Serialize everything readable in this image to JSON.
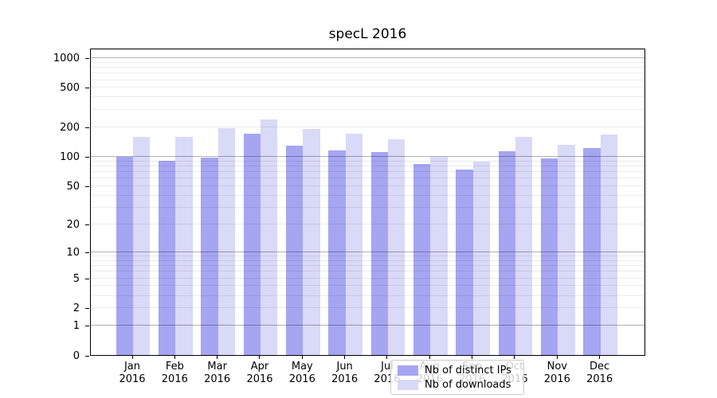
{
  "chart_data": {
    "type": "bar",
    "title": "specL 2016",
    "x": {
      "months": [
        "Jan",
        "Feb",
        "Mar",
        "Apr",
        "May",
        "Jun",
        "Jul",
        "Aug",
        "Sep",
        "Oct",
        "Nov",
        "Dec"
      ],
      "year": "2016"
    },
    "series": [
      {
        "name": "Nb of distinct IPs",
        "color": "#a5a5f2",
        "values": [
          100,
          90,
          97,
          170,
          128,
          114,
          110,
          83,
          73,
          112,
          96,
          122
        ]
      },
      {
        "name": "Nb of downloads",
        "color": "#d9d9f8",
        "values": [
          158,
          158,
          194,
          237,
          190,
          170,
          149,
          99,
          89,
          157,
          131,
          168
        ]
      }
    ],
    "yscale": "log1p",
    "y_tick_labels": [
      "1000",
      "500",
      "200",
      "100",
      "50",
      "20",
      "10",
      "5",
      "2",
      "1",
      "0"
    ],
    "ylim": [
      0,
      1280
    ],
    "xlabel": "",
    "ylabel": "",
    "grid": {
      "which": "both",
      "major_color": "#b4b4b4",
      "minor_color": "#ebebeb"
    },
    "legend": {
      "frame": true,
      "location": "lower center"
    }
  }
}
